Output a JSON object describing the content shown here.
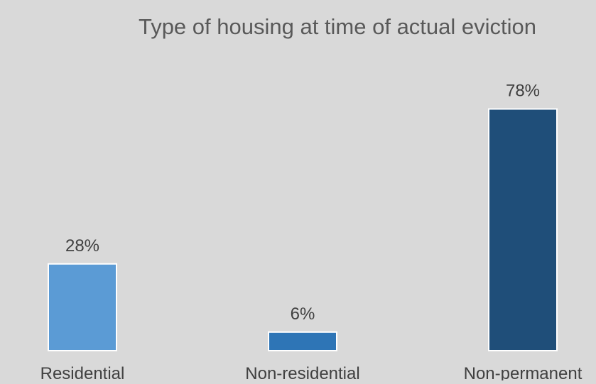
{
  "chart_data": {
    "type": "bar",
    "title": "Type of housing at time of actual eviction",
    "categories": [
      "Residential",
      "Non-residential",
      "Non-permanent"
    ],
    "values": [
      28,
      6,
      78
    ],
    "data_labels": [
      "28%",
      "6%",
      "78%"
    ],
    "colors": [
      "#5b9bd5",
      "#2e75b6",
      "#1f4e79"
    ],
    "background": "#d9d9d9",
    "xlabel": "",
    "ylabel": "",
    "ylim": [
      0,
      80
    ],
    "grid": false,
    "legend": "none"
  }
}
